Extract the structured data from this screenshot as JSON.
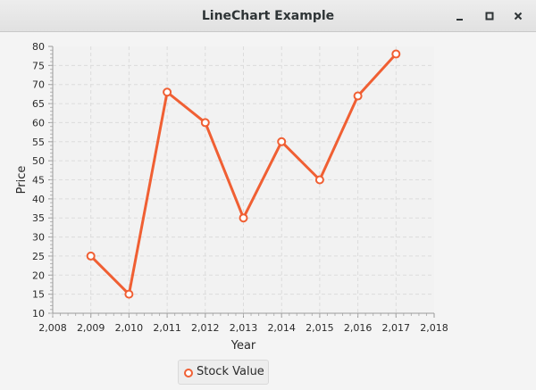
{
  "window": {
    "title": "LineChart Example",
    "controls": [
      "minimize-icon",
      "maximize-icon",
      "close-icon"
    ]
  },
  "colors": {
    "series": "#f05f33",
    "plot_background": "#f2f2f2",
    "grid": "#dcdcdc"
  },
  "chart_data": {
    "type": "line",
    "title": "",
    "xlabel": "Year",
    "ylabel": "Price",
    "xlim": [
      2008,
      2018
    ],
    "ylim": [
      10,
      80
    ],
    "x_ticks": [
      2008,
      2009,
      2010,
      2011,
      2012,
      2013,
      2014,
      2015,
      2016,
      2017,
      2018
    ],
    "x_tick_labels": [
      "2,008",
      "2,009",
      "2,010",
      "2,011",
      "2,012",
      "2,013",
      "2,014",
      "2,015",
      "2,016",
      "2,017",
      "2,018"
    ],
    "y_ticks": [
      10,
      15,
      20,
      25,
      30,
      35,
      40,
      45,
      50,
      55,
      60,
      65,
      70,
      75,
      80
    ],
    "grid": true,
    "legend_position": "bottom",
    "series": [
      {
        "name": "Stock Value",
        "x": [
          2009,
          2010,
          2011,
          2012,
          2013,
          2014,
          2015,
          2016,
          2017
        ],
        "y": [
          25,
          15,
          68,
          60,
          35,
          55,
          45,
          67,
          78
        ]
      }
    ]
  }
}
